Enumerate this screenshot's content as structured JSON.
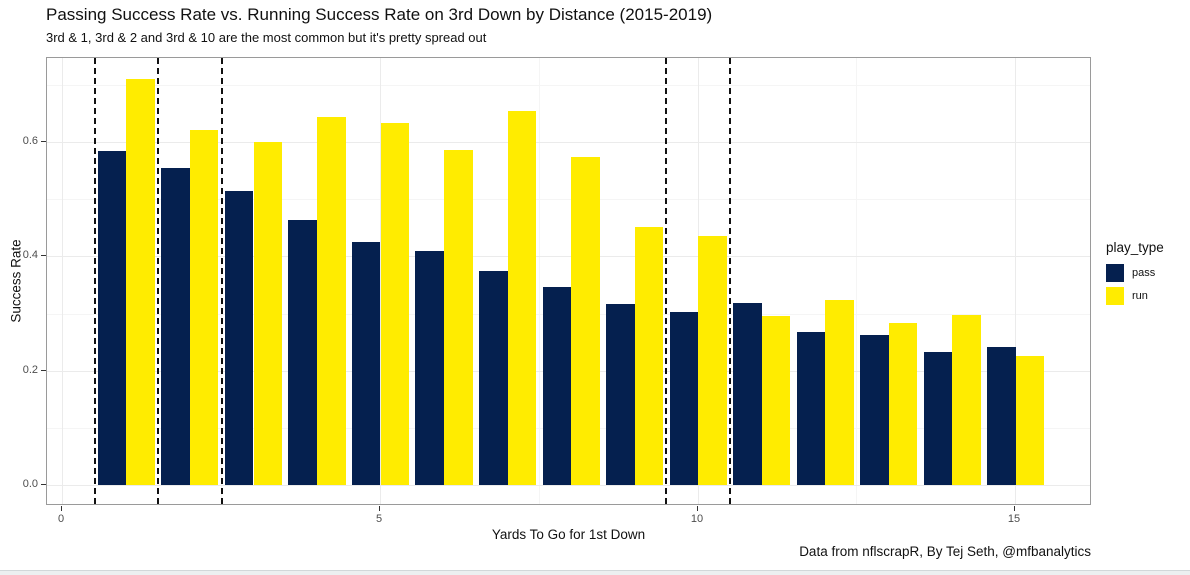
{
  "chart_data": {
    "type": "bar",
    "title": "Passing Success Rate vs. Running Success Rate on 3rd Down by Distance (2015-2019)",
    "subtitle": "3rd & 1, 3rd & 2 and 3rd & 10 are the most common but it's pretty spread out",
    "caption": "Data from nflscrapR, By Tej Seth, @mfbanalytics",
    "xlabel": "Yards To Go for 1st Down",
    "ylabel": "Success Rate",
    "categories": [
      1,
      2,
      3,
      4,
      5,
      6,
      7,
      8,
      9,
      10,
      11,
      12,
      13,
      14,
      15
    ],
    "series": [
      {
        "name": "pass",
        "color": "#05204F",
        "values": [
          0.586,
          0.555,
          0.515,
          0.464,
          0.426,
          0.411,
          0.375,
          0.347,
          0.318,
          0.304,
          0.32,
          0.268,
          0.264,
          0.233,
          0.243
        ]
      },
      {
        "name": "run",
        "color": "#FFEC00",
        "values": [
          0.712,
          0.622,
          0.601,
          0.645,
          0.634,
          0.587,
          0.655,
          0.574,
          0.453,
          0.436,
          0.297,
          0.325,
          0.284,
          0.298,
          0.227
        ]
      }
    ],
    "legend": {
      "title": "play_type",
      "position": "right"
    },
    "bar_width": 0.45,
    "xlim": [
      -0.25,
      16.2
    ],
    "ylim": [
      -0.036,
      0.748
    ],
    "x_ticks": [
      {
        "value": 0,
        "label": "0"
      },
      {
        "value": 5,
        "label": "5"
      },
      {
        "value": 10,
        "label": "10"
      },
      {
        "value": 15,
        "label": "15"
      }
    ],
    "y_ticks": [
      {
        "value": 0,
        "label": "0.0"
      },
      {
        "value": 0.2,
        "label": "0.2"
      },
      {
        "value": 0.4,
        "label": "0.4"
      },
      {
        "value": 0.6,
        "label": "0.6"
      }
    ],
    "grid": {
      "y_major": [
        0,
        0.2,
        0.4,
        0.6
      ],
      "y_minor": [
        0.1,
        0.3,
        0.5,
        0.7
      ],
      "x_major": [
        0,
        5,
        10,
        15
      ],
      "x_minor": [
        2.5,
        7.5,
        12.5
      ]
    },
    "vlines": [
      0.5,
      1.5,
      2.5,
      9.5,
      10.5
    ]
  }
}
